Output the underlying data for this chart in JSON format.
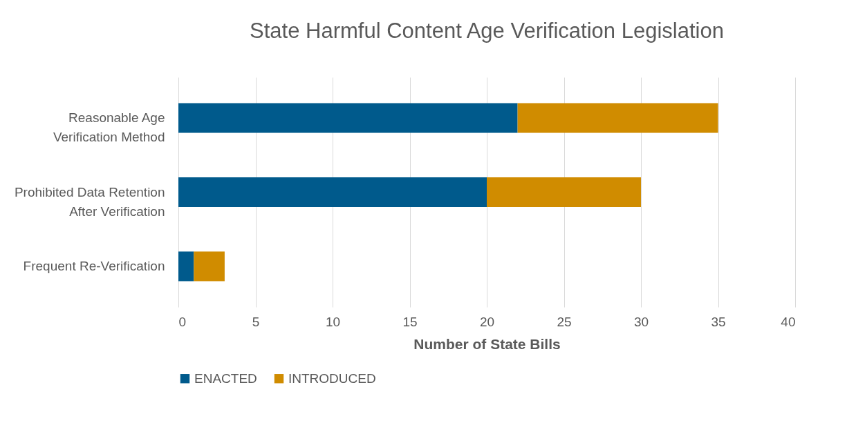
{
  "chart_data": {
    "type": "bar",
    "orientation": "horizontal",
    "stacked": true,
    "title": "State Harmful Content Age Verification Legislation",
    "xlabel": "Number of State Bills",
    "categories": [
      "Reasonable Age Verification Method",
      "Prohibited Data Retention After Verification",
      "Frequent Re-Verification"
    ],
    "series": [
      {
        "name": "ENACTED",
        "color": "#005a8c",
        "values": [
          22,
          20,
          1
        ]
      },
      {
        "name": "INTRODUCED",
        "color": "#d08c00",
        "values": [
          13,
          10,
          2
        ]
      }
    ],
    "xlim": [
      0,
      40
    ],
    "xticks": [
      0,
      5,
      10,
      15,
      20,
      25,
      30,
      35,
      40
    ],
    "grid": "x",
    "legend": "bottom"
  }
}
